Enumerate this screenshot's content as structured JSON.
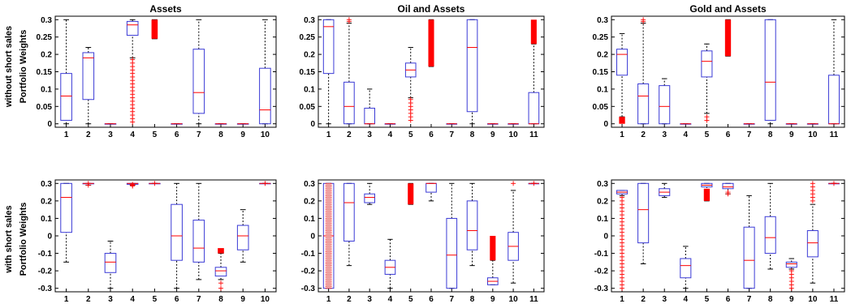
{
  "figure": {
    "row_labels": [
      "without short sales",
      "with short sales"
    ],
    "ylabel": "Portfolio Weights"
  },
  "chart_data": [
    {
      "type": "box",
      "title": "Assets",
      "row": 0,
      "col": 0,
      "categories": [
        "1",
        "2",
        "3",
        "4",
        "5",
        "6",
        "7",
        "8",
        "9",
        "10"
      ],
      "ylim": [
        -0.01,
        0.31
      ],
      "yticks": [
        0,
        0.05,
        0.1,
        0.15,
        0.2,
        0.25,
        0.3
      ],
      "ytick_labels": [
        "0",
        "0.05",
        "0.1",
        "0.15",
        "0.2",
        "0.25",
        "0.3"
      ],
      "boxes": [
        {
          "wl": 0,
          "q1": 0.01,
          "med": 0.08,
          "q3": 0.145,
          "wh": 0.3
        },
        {
          "wl": 0,
          "q1": 0.07,
          "med": 0.19,
          "q3": 0.205,
          "wh": 0.22
        },
        {
          "wl": 0,
          "q1": 0,
          "med": 0,
          "q3": 0,
          "wh": 0
        },
        {
          "wl": 0.19,
          "q1": 0.255,
          "med": 0.285,
          "q3": 0.295,
          "wh": 0.3,
          "outliers": [
            0.185,
            0.175,
            0.165,
            0.155,
            0.145,
            0.135,
            0.125,
            0.115,
            0.105,
            0.095,
            0.085,
            0.075,
            0.065,
            0.055,
            0.045,
            0.035,
            0.025,
            0.015,
            0.005
          ]
        },
        {
          "wl": 0.245,
          "q1": 0.25,
          "med": 0.3,
          "q3": 0.3,
          "wh": 0.3,
          "solid": true
        },
        {
          "wl": 0,
          "q1": 0,
          "med": 0,
          "q3": 0,
          "wh": 0
        },
        {
          "wl": 0,
          "q1": 0.03,
          "med": 0.09,
          "q3": 0.215,
          "wh": 0.3
        },
        {
          "wl": 0,
          "q1": 0,
          "med": 0,
          "q3": 0,
          "wh": 0
        },
        {
          "wl": 0,
          "q1": 0,
          "med": 0,
          "q3": 0,
          "wh": 0
        },
        {
          "wl": 0,
          "q1": 0,
          "med": 0.04,
          "q3": 0.16,
          "wh": 0.3
        }
      ]
    },
    {
      "type": "box",
      "title": "Oil and Assets",
      "row": 0,
      "col": 1,
      "categories": [
        "1",
        "2",
        "3",
        "4",
        "5",
        "6",
        "7",
        "8",
        "9",
        "10",
        "11"
      ],
      "ylim": [
        -0.01,
        0.31
      ],
      "yticks": [
        0,
        0.05,
        0.1,
        0.15,
        0.2,
        0.25,
        0.3
      ],
      "ytick_labels": [
        "0",
        "0.05",
        "0.1",
        "0.15",
        "0.2",
        "0.25",
        "0.3"
      ],
      "boxes": [
        {
          "wl": 0,
          "q1": 0.145,
          "med": 0.28,
          "q3": 0.3,
          "wh": 0.3
        },
        {
          "wl": 0,
          "q1": 0,
          "med": 0.05,
          "q3": 0.12,
          "wh": 0.29,
          "outliers": [
            0.295,
            0.3
          ]
        },
        {
          "wl": 0,
          "q1": 0,
          "med": 0,
          "q3": 0.045,
          "wh": 0.1
        },
        {
          "wl": 0,
          "q1": 0,
          "med": 0,
          "q3": 0,
          "wh": 0
        },
        {
          "wl": 0.075,
          "q1": 0.135,
          "med": 0.155,
          "q3": 0.175,
          "wh": 0.22,
          "outliers": [
            0.07,
            0.06,
            0.05,
            0.04,
            0.03,
            0.02,
            0.01
          ]
        },
        {
          "wl": 0.165,
          "q1": 0.165,
          "med": 0.225,
          "q3": 0.3,
          "wh": 0.3,
          "solid": true
        },
        {
          "wl": 0,
          "q1": 0,
          "med": 0,
          "q3": 0,
          "wh": 0
        },
        {
          "wl": 0,
          "q1": 0.035,
          "med": 0.22,
          "q3": 0.3,
          "wh": 0.3
        },
        {
          "wl": 0,
          "q1": 0,
          "med": 0,
          "q3": 0,
          "wh": 0
        },
        {
          "wl": 0,
          "q1": 0,
          "med": 0,
          "q3": 0,
          "wh": 0
        },
        {
          "wl": 0,
          "q1": 0,
          "med": 0,
          "q3": 0.09,
          "wh": 0.23,
          "solid_top": [
            0.23,
            0.3
          ]
        }
      ]
    },
    {
      "type": "box",
      "title": "Gold and Assets",
      "row": 0,
      "col": 2,
      "categories": [
        "1",
        "2",
        "3",
        "4",
        "5",
        "6",
        "7",
        "8",
        "9",
        "10",
        "11"
      ],
      "ylim": [
        -0.01,
        0.31
      ],
      "yticks": [
        0,
        0.05,
        0.1,
        0.15,
        0.2,
        0.25,
        0.3
      ],
      "ytick_labels": [
        "0",
        "0.05",
        "0.1",
        "0.15",
        "0.2",
        "0.25",
        "0.3"
      ],
      "boxes": [
        {
          "wl": 0.02,
          "q1": 0.14,
          "med": 0.2,
          "q3": 0.215,
          "wh": 0.26,
          "solid_bottom": [
            0,
            0.02
          ]
        },
        {
          "wl": 0,
          "q1": 0,
          "med": 0.08,
          "q3": 0.115,
          "wh": 0.29,
          "outliers": [
            0.295,
            0.3
          ]
        },
        {
          "wl": 0,
          "q1": 0,
          "med": 0.05,
          "q3": 0.11,
          "wh": 0.13
        },
        {
          "wl": 0,
          "q1": 0,
          "med": 0,
          "q3": 0,
          "wh": 0
        },
        {
          "wl": 0.03,
          "q1": 0.135,
          "med": 0.18,
          "q3": 0.21,
          "wh": 0.23,
          "outliers": [
            0.02,
            0.01
          ]
        },
        {
          "wl": 0.195,
          "q1": 0.195,
          "med": 0.245,
          "q3": 0.3,
          "wh": 0.3,
          "solid": true
        },
        {
          "wl": 0,
          "q1": 0,
          "med": 0,
          "q3": 0,
          "wh": 0
        },
        {
          "wl": 0,
          "q1": 0.01,
          "med": 0.12,
          "q3": 0.3,
          "wh": 0.3
        },
        {
          "wl": 0,
          "q1": 0,
          "med": 0,
          "q3": 0,
          "wh": 0
        },
        {
          "wl": 0,
          "q1": 0,
          "med": 0,
          "q3": 0,
          "wh": 0
        },
        {
          "wl": 0,
          "q1": 0,
          "med": 0,
          "q3": 0.14,
          "wh": 0.3
        }
      ]
    },
    {
      "type": "box",
      "title": "",
      "row": 1,
      "col": 0,
      "categories": [
        "1",
        "2",
        "3",
        "4",
        "5",
        "6",
        "7",
        "8",
        "9",
        "10"
      ],
      "ylim": [
        -0.32,
        0.32
      ],
      "yticks": [
        -0.3,
        -0.2,
        -0.1,
        0,
        0.1,
        0.2,
        0.3
      ],
      "ytick_labels": [
        "-0.3",
        "-0.2",
        "-0.1",
        "0",
        "0.1",
        "0.2",
        "0.3"
      ],
      "boxes": [
        {
          "wl": -0.15,
          "q1": 0.02,
          "med": 0.22,
          "q3": 0.3,
          "wh": 0.3
        },
        {
          "wl": 0.29,
          "q1": 0.3,
          "med": 0.3,
          "q3": 0.3,
          "wh": 0.3,
          "outliers": [
            0.29,
            0.3
          ]
        },
        {
          "wl": -0.3,
          "q1": -0.21,
          "med": -0.15,
          "q3": -0.1,
          "wh": -0.03
        },
        {
          "wl": 0.29,
          "q1": 0.295,
          "med": 0.3,
          "q3": 0.3,
          "wh": 0.3,
          "outliers": [
            0.285,
            0.29,
            0.295
          ]
        },
        {
          "wl": 0.3,
          "q1": 0.3,
          "med": 0.3,
          "q3": 0.3,
          "wh": 0.3,
          "outliers": [
            0.3
          ]
        },
        {
          "wl": -0.3,
          "q1": -0.14,
          "med": 0,
          "q3": 0.18,
          "wh": 0.3
        },
        {
          "wl": -0.25,
          "q1": -0.15,
          "med": -0.07,
          "q3": 0.09,
          "wh": 0.3
        },
        {
          "wl": -0.25,
          "q1": -0.23,
          "med": -0.2,
          "q3": -0.18,
          "wh": -0.1,
          "solid_top": [
            -0.1,
            -0.07
          ],
          "outliers": [
            -0.27,
            -0.3
          ]
        },
        {
          "wl": -0.15,
          "q1": -0.08,
          "med": 0,
          "q3": 0.06,
          "wh": 0.15
        },
        {
          "wl": 0.3,
          "q1": 0.3,
          "med": 0.3,
          "q3": 0.3,
          "wh": 0.3,
          "outliers": [
            0.3
          ]
        }
      ]
    },
    {
      "type": "box",
      "title": "",
      "row": 1,
      "col": 1,
      "categories": [
        "1",
        "2",
        "3",
        "4",
        "5",
        "6",
        "7",
        "8",
        "9",
        "10",
        "11"
      ],
      "ylim": [
        -0.32,
        0.32
      ],
      "yticks": [
        -0.3,
        -0.2,
        -0.1,
        0,
        0.1,
        0.2,
        0.3
      ],
      "ytick_labels": [
        "-0.3",
        "-0.2",
        "-0.1",
        "0",
        "0.1",
        "0.2",
        "0.3"
      ],
      "boxes": [
        {
          "wl": -0.3,
          "q1": -0.3,
          "med": 0,
          "q3": 0.3,
          "wh": 0.3,
          "dense_outliers": true
        },
        {
          "wl": -0.17,
          "q1": -0.03,
          "med": 0.19,
          "q3": 0.3,
          "wh": 0.3
        },
        {
          "wl": 0.18,
          "q1": 0.19,
          "med": 0.22,
          "q3": 0.24,
          "wh": 0.3
        },
        {
          "wl": -0.3,
          "q1": -0.22,
          "med": -0.18,
          "q3": -0.14,
          "wh": -0.02
        },
        {
          "wl": 0.18,
          "q1": 0.2,
          "med": 0.28,
          "q3": 0.3,
          "wh": 0.3,
          "solid": true
        },
        {
          "wl": 0.2,
          "q1": 0.25,
          "med": 0.3,
          "q3": 0.3,
          "wh": 0.3
        },
        {
          "wl": -0.3,
          "q1": -0.3,
          "med": -0.11,
          "q3": 0.1,
          "wh": 0.3
        },
        {
          "wl": -0.17,
          "q1": -0.08,
          "med": 0.03,
          "q3": 0.2,
          "wh": 0.3
        },
        {
          "wl": -0.28,
          "q1": -0.28,
          "med": -0.26,
          "q3": -0.24,
          "wh": -0.14,
          "solid_top": [
            -0.14,
            0
          ]
        },
        {
          "wl": -0.27,
          "q1": -0.14,
          "med": -0.06,
          "q3": 0.02,
          "wh": 0.26,
          "outliers": [
            0.3
          ]
        },
        {
          "wl": 0.3,
          "q1": 0.3,
          "med": 0.3,
          "q3": 0.3,
          "wh": 0.3,
          "outliers": [
            0.3
          ]
        }
      ]
    },
    {
      "type": "box",
      "title": "",
      "row": 1,
      "col": 2,
      "categories": [
        "1",
        "2",
        "3",
        "4",
        "5",
        "6",
        "7",
        "8",
        "9",
        "10",
        "11"
      ],
      "ylim": [
        -0.32,
        0.32
      ],
      "yticks": [
        -0.3,
        -0.2,
        -0.1,
        0,
        0.1,
        0.2,
        0.3
      ],
      "ytick_labels": [
        "-0.3",
        "-0.2",
        "-0.1",
        "0",
        "0.1",
        "0.2",
        "0.3"
      ],
      "boxes": [
        {
          "wl": 0.23,
          "q1": 0.24,
          "med": 0.25,
          "q3": 0.26,
          "wh": 0.26,
          "outliers": [
            0.22,
            0.2,
            0.18,
            0.16,
            0.14,
            0.12,
            0.1,
            0.08,
            0.06,
            0.04,
            0.02,
            0,
            -0.02,
            -0.04,
            -0.06,
            -0.08,
            -0.1,
            -0.12,
            -0.14,
            -0.16,
            -0.18,
            -0.2,
            -0.22,
            -0.24,
            -0.26,
            -0.28,
            -0.3
          ]
        },
        {
          "wl": -0.16,
          "q1": -0.04,
          "med": 0.15,
          "q3": 0.3,
          "wh": 0.3
        },
        {
          "wl": 0.22,
          "q1": 0.23,
          "med": 0.25,
          "q3": 0.27,
          "wh": 0.3
        },
        {
          "wl": -0.3,
          "q1": -0.24,
          "med": -0.17,
          "q3": -0.13,
          "wh": -0.06
        },
        {
          "wl": 0.2,
          "q1": 0.28,
          "med": 0.29,
          "q3": 0.3,
          "wh": 0.3,
          "solid_bottom": [
            0.2,
            0.27
          ]
        },
        {
          "wl": 0.24,
          "q1": 0.27,
          "med": 0.28,
          "q3": 0.3,
          "wh": 0.3,
          "outliers": [
            0.24,
            0.25
          ]
        },
        {
          "wl": -0.3,
          "q1": -0.3,
          "med": -0.14,
          "q3": 0.05,
          "wh": 0.23
        },
        {
          "wl": -0.19,
          "q1": -0.1,
          "med": -0.01,
          "q3": 0.11,
          "wh": 0.3
        },
        {
          "wl": -0.19,
          "q1": -0.18,
          "med": -0.16,
          "q3": -0.15,
          "wh": -0.13,
          "outliers": [
            -0.2,
            -0.22,
            -0.24,
            -0.26,
            -0.28,
            -0.3
          ]
        },
        {
          "wl": -0.27,
          "q1": -0.12,
          "med": -0.04,
          "q3": 0.03,
          "wh": 0.18,
          "outliers": [
            0.2,
            0.22,
            0.24,
            0.26,
            0.28,
            0.3
          ]
        },
        {
          "wl": 0.3,
          "q1": 0.3,
          "med": 0.3,
          "q3": 0.3,
          "wh": 0.3,
          "outliers": [
            0.3
          ]
        }
      ]
    }
  ]
}
